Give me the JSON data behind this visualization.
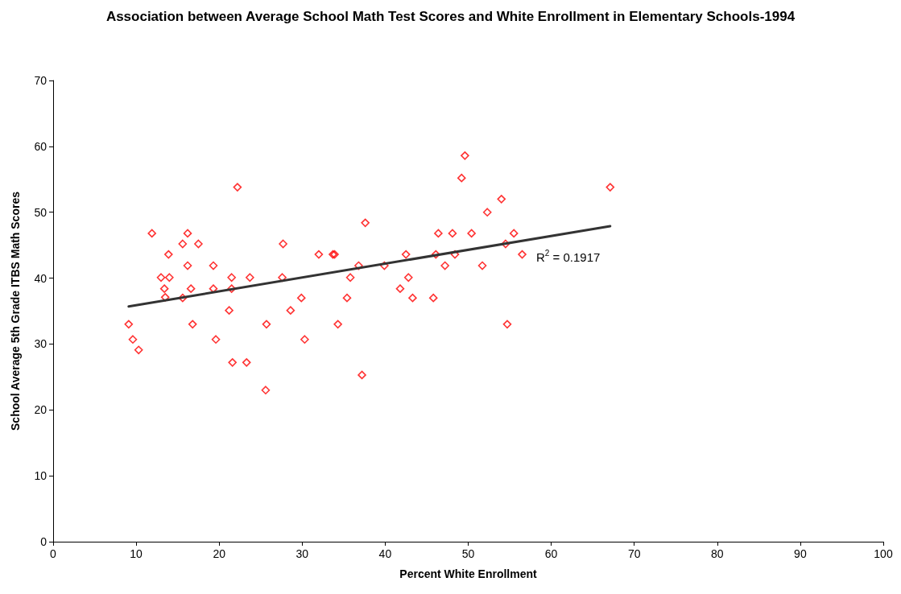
{
  "chart_data": {
    "type": "scatter",
    "title": "Association between Average School Math Test Scores and White Enrollment in Elementary Schools-1994",
    "xlabel": "Percent White Enrollment",
    "ylabel": "School Average 5th Grade ITBS Math Scores",
    "xlim": [
      0,
      100
    ],
    "xticks": [
      0,
      10,
      20,
      30,
      40,
      50,
      60,
      70,
      80,
      90,
      100
    ],
    "ylim": [
      0,
      70
    ],
    "yticks": [
      0,
      10,
      20,
      30,
      40,
      50,
      60,
      70
    ],
    "grid": false,
    "series": [
      {
        "color": "#ff0000",
        "marker": "diamond",
        "x": [
          9.1,
          9.6,
          10.3,
          11.9,
          13.0,
          13.4,
          13.5,
          13.9,
          14.0,
          15.6,
          15.6,
          16.2,
          16.2,
          16.6,
          16.8,
          17.5,
          19.3,
          19.3,
          19.6,
          21.2,
          21.5,
          21.5,
          21.6,
          22.2,
          23.3,
          23.7,
          25.7,
          25.6,
          27.7,
          27.6,
          28.6,
          29.9,
          30.3,
          32.0,
          33.7,
          33.9,
          34.3,
          35.4,
          35.8,
          36.8,
          37.2,
          37.6,
          39.9,
          41.8,
          42.5,
          42.8,
          43.3,
          45.8,
          46.1,
          46.4,
          47.2,
          48.1,
          48.4,
          49.2,
          49.6,
          50.4,
          51.7,
          52.3,
          54.0,
          54.5,
          54.7,
          55.5,
          56.5,
          67.1
        ],
        "values": [
          33.0,
          30.7,
          29.1,
          46.8,
          40.1,
          38.4,
          37.1,
          43.6,
          40.1,
          45.2,
          37.0,
          46.8,
          41.9,
          38.4,
          33.0,
          45.2,
          41.9,
          38.4,
          30.7,
          35.1,
          40.1,
          38.4,
          27.2,
          53.8,
          27.2,
          40.1,
          33.0,
          23.0,
          45.2,
          40.1,
          35.1,
          37.0,
          30.7,
          43.6,
          43.6,
          43.6,
          33.0,
          37.0,
          40.1,
          41.9,
          25.3,
          48.4,
          41.9,
          38.4,
          43.6,
          40.1,
          37.0,
          37.0,
          43.6,
          46.8,
          41.9,
          46.8,
          43.6,
          55.2,
          58.6,
          46.8,
          41.9,
          50.0,
          52.0,
          45.2,
          33.0,
          46.8,
          43.6,
          53.8
        ]
      },
      {
        "type": "line",
        "color": "#333333",
        "marker": "none",
        "line_style": "solid",
        "x": [
          9.1,
          67.1
        ],
        "values": [
          35.7,
          47.9
        ]
      }
    ],
    "annotations": [
      "R$^{2}$ = 0.1917"
    ]
  }
}
